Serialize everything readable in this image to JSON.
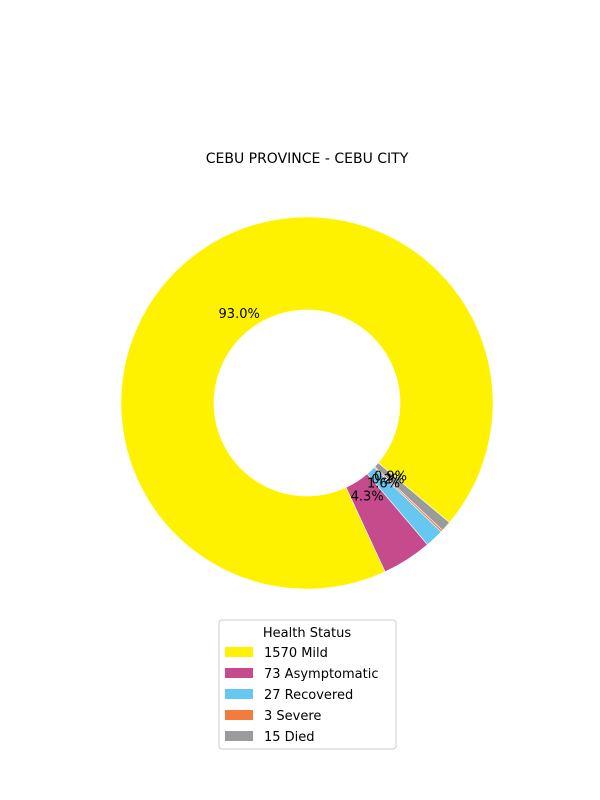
{
  "chart_data": {
    "type": "pie",
    "style": "donut",
    "title": "CEBU PROVINCE - CEBU CITY",
    "legend_title": "Health Status",
    "legend_position": "bottom-center",
    "slices": [
      {
        "label": "Mild",
        "count": 1570,
        "legend": "1570  Mild",
        "percent_label": "93.0%",
        "color": "#FFF200"
      },
      {
        "label": "Asymptomatic",
        "count": 73,
        "legend": "73  Asymptomatic",
        "percent_label": "4.3%",
        "color": "#C64B8C"
      },
      {
        "label": "Recovered",
        "count": 27,
        "legend": "27  Recovered",
        "percent_label": "1.6%",
        "color": "#66C7F0"
      },
      {
        "label": "Severe",
        "count": 3,
        "legend": "3  Severe",
        "percent_label": "0.2%",
        "color": "#F47B3C"
      },
      {
        "label": "Died",
        "count": 15,
        "legend": "15  Died",
        "percent_label": "0.9%",
        "color": "#9B9B9B"
      }
    ]
  }
}
